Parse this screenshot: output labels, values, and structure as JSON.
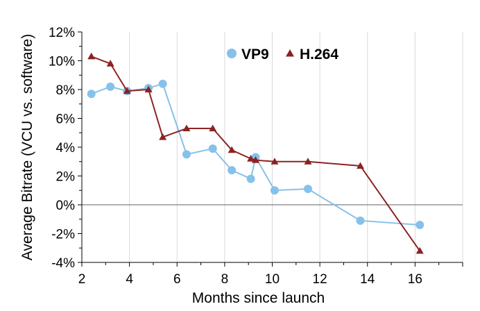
{
  "chart_data": {
    "type": "line",
    "xlabel": "Months since launch",
    "ylabel": "Average Bitrate (VCU vs. software)",
    "xlim": [
      2,
      18
    ],
    "ylim": [
      -4,
      12
    ],
    "x_ticks": [
      "2",
      "4",
      "6",
      "8",
      "10",
      "12",
      "14",
      "16"
    ],
    "y_ticks": [
      "-4%",
      "-2%",
      "0%",
      "2%",
      "4%",
      "6%",
      "8%",
      "10%",
      "12%"
    ],
    "grid": "vertical",
    "legend_position": "top-right",
    "series": [
      {
        "name": "VP9",
        "marker": "circle",
        "color": "#85c1ea",
        "points": [
          [
            2.4,
            7.7
          ],
          [
            3.2,
            8.2
          ],
          [
            3.9,
            7.9
          ],
          [
            4.8,
            8.1
          ],
          [
            5.4,
            8.4
          ],
          [
            6.4,
            3.5
          ],
          [
            7.5,
            3.9
          ],
          [
            8.3,
            2.4
          ],
          [
            9.1,
            1.8
          ],
          [
            9.3,
            3.3
          ],
          [
            10.1,
            1.0
          ],
          [
            11.5,
            1.1
          ],
          [
            13.7,
            -1.1
          ],
          [
            16.2,
            -1.4
          ]
        ]
      },
      {
        "name": "H.264",
        "marker": "triangle",
        "color": "#8b2323",
        "points": [
          [
            2.4,
            10.3
          ],
          [
            3.2,
            9.8
          ],
          [
            3.9,
            7.9
          ],
          [
            4.8,
            8.0
          ],
          [
            5.4,
            4.7
          ],
          [
            6.4,
            5.3
          ],
          [
            7.5,
            5.3
          ],
          [
            8.3,
            3.8
          ],
          [
            9.1,
            3.2
          ],
          [
            9.3,
            3.1
          ],
          [
            10.1,
            3.0
          ],
          [
            11.5,
            3.0
          ],
          [
            13.7,
            2.7
          ],
          [
            16.2,
            -3.2
          ]
        ]
      }
    ]
  }
}
